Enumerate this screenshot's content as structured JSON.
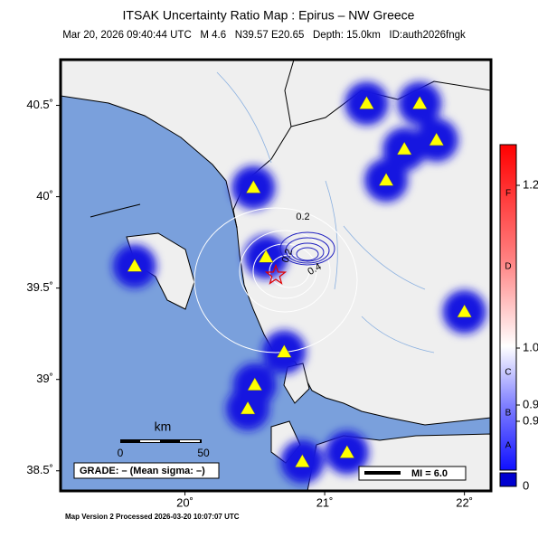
{
  "title": "ITSAK Uncertainty Ratio Map : Epirus – NW Greece",
  "subtitle": "Mar 20, 2026 09:40:44 UTC   M 4.6   N39.57 E20.65   Depth: 15.0km   ID:auth2026fngk",
  "xlim": [
    19.11,
    22.19
  ],
  "ylim": [
    38.39,
    40.75
  ],
  "xticks": [
    {
      "value": 20,
      "label": "20˚"
    },
    {
      "value": 21,
      "label": "21˚"
    },
    {
      "value": 22,
      "label": "22˚"
    }
  ],
  "yticks": [
    {
      "value": 38.5,
      "label": "38.5˚"
    },
    {
      "value": 39,
      "label": "39˚"
    },
    {
      "value": 39.5,
      "label": "39.5˚"
    },
    {
      "value": 40,
      "label": "40˚"
    },
    {
      "value": 40.5,
      "label": "40.5˚"
    }
  ],
  "epicenter": {
    "lon": 20.65,
    "lat": 39.57
  },
  "stations": [
    {
      "lon": 21.3,
      "lat": 40.51
    },
    {
      "lon": 21.68,
      "lat": 40.51
    },
    {
      "lon": 21.57,
      "lat": 40.26
    },
    {
      "lon": 21.8,
      "lat": 40.31
    },
    {
      "lon": 21.44,
      "lat": 40.09
    },
    {
      "lon": 20.49,
      "lat": 40.05
    },
    {
      "lon": 20.58,
      "lat": 39.67
    },
    {
      "lon": 19.64,
      "lat": 39.62
    },
    {
      "lon": 22.0,
      "lat": 39.37
    },
    {
      "lon": 20.71,
      "lat": 39.15
    },
    {
      "lon": 20.5,
      "lat": 38.97
    },
    {
      "lon": 20.45,
      "lat": 38.84
    },
    {
      "lon": 21.16,
      "lat": 38.6
    },
    {
      "lon": 20.84,
      "lat": 38.55
    }
  ],
  "contour_labels": [
    "0.2",
    "0.2",
    "0.4"
  ],
  "colorbar": {
    "clim": [
      0.85,
      1.25
    ],
    "ticks": [
      {
        "value": 1.2,
        "label": "1.2"
      },
      {
        "value": 1.0,
        "label": "1.0"
      },
      {
        "value": 0.93,
        "label": "0.9"
      },
      {
        "value": 0.91,
        "label": "0.9"
      }
    ],
    "under_label": "0",
    "grades": [
      {
        "value": 1.19,
        "label": "F"
      },
      {
        "value": 1.1,
        "label": "D"
      },
      {
        "value": 0.97,
        "label": "C"
      },
      {
        "value": 0.92,
        "label": "B"
      },
      {
        "value": 0.88,
        "label": "A"
      }
    ]
  },
  "scale_bar": {
    "unit": "km",
    "start": "0",
    "end": "50"
  },
  "grade_text": "GRADE: – (Mean sigma: –)",
  "mi_legend": "MI = 6.0",
  "footer": "Map Version 2 Processed 2026-03-20 10:07:07 UTC"
}
